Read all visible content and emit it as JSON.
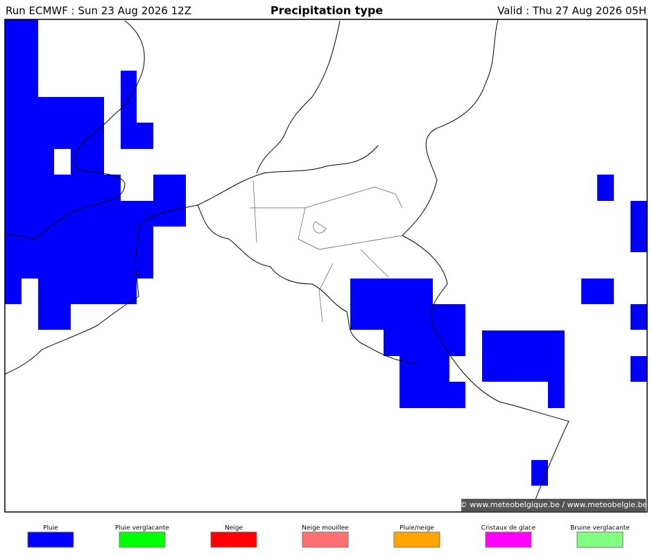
{
  "header": {
    "run": "Run ECMWF : Sun 23 Aug 2026 12Z",
    "title": "Precipitation type",
    "valid": "Valid : Thu 27 Aug 2026 05H"
  },
  "map": {
    "credit": "© www.meteobelgique.be / www.meteobelgie.be"
  },
  "legend": {
    "items": [
      {
        "label": "Pluie",
        "color": "#0000ff"
      },
      {
        "label": "Pluie verglacante",
        "color": "#00ff00"
      },
      {
        "label": "Neige",
        "color": "#ff0000"
      },
      {
        "label": "Neige mouillee",
        "color": "#ff7070"
      },
      {
        "label": "Pluie/neige",
        "color": "#ffa500"
      },
      {
        "label": "Cristaux de glace",
        "color": "#ff00ff"
      },
      {
        "label": "Bruine verglacante",
        "color": "#80ff80"
      }
    ]
  }
}
